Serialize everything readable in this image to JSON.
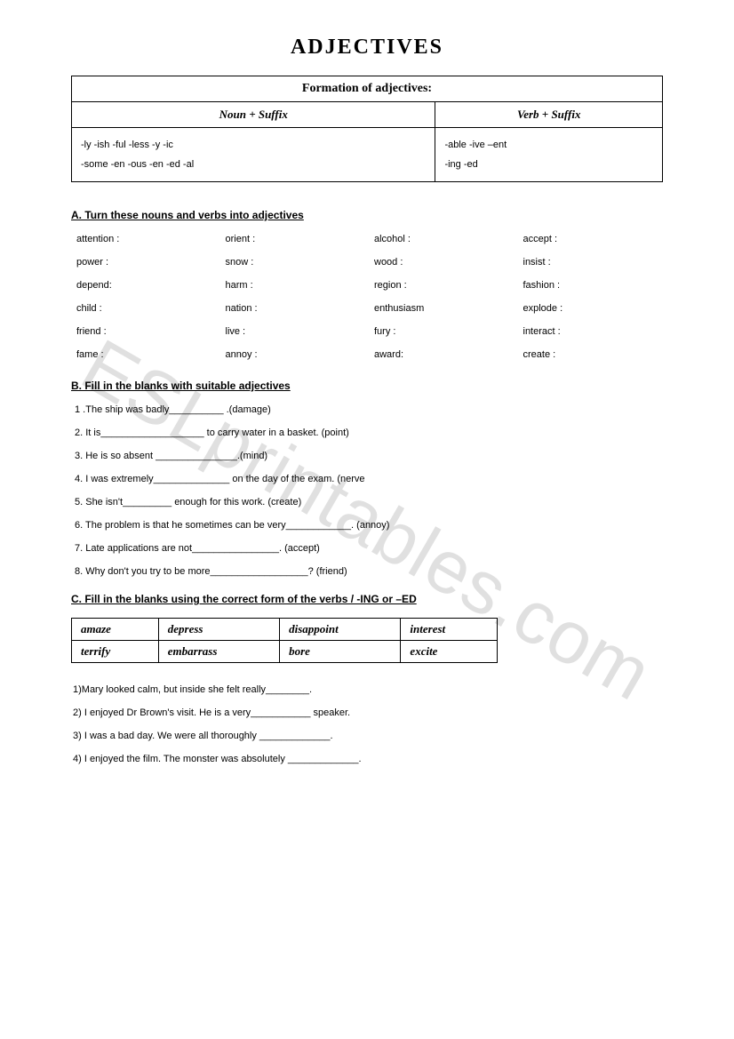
{
  "title": "ADJECTIVES",
  "watermark": "ESLprintables.com",
  "formation": {
    "header": "Formation of adjectives:",
    "col1_header": "Noun + Suffix",
    "col2_header": "Verb + Suffix",
    "col1_line1": "-ly -ish -ful -less -y -ic",
    "col1_line2": "-some -en -ous -en -ed -al",
    "col2_line1": "-able -ive –ent",
    "col2_line2": "-ing -ed"
  },
  "sectionA": {
    "heading": "A. Turn these nouns and verbs into adjectives",
    "words": [
      "attention :",
      "orient :",
      "alcohol :",
      "accept :",
      "power :",
      "snow :",
      "wood :",
      "insist :",
      "depend:",
      "harm :",
      "region :",
      "fashion :",
      "child :",
      "nation :",
      "enthusiasm",
      "explode :",
      "friend :",
      "live :",
      "fury :",
      "interact :",
      "fame :",
      "annoy :",
      "award:",
      "create :"
    ]
  },
  "sectionB": {
    "heading": "B. Fill in the blanks with suitable adjectives",
    "items": [
      "1 .The ship was badly__________ .(damage)",
      "2. It is___________________ to carry water in a basket. (point)",
      "3. He is so absent _______________.(mind)",
      "4. I was extremely______________ on the day of the exam. (nerve",
      "5. She isn't_________ enough for this work. (create)",
      "6. The problem is that he sometimes can be very____________. (annoy)",
      "7. Late applications are not________________. (accept)",
      "8. Why don't you try to be more__________________? (friend)"
    ]
  },
  "sectionC": {
    "heading": "C. Fill in the blanks using the correct form of the verbs / -ING or –ED",
    "verbs": [
      [
        "amaze",
        "depress",
        "disappoint",
        "interest"
      ],
      [
        "terrify",
        "embarrass",
        "bore",
        "excite"
      ]
    ],
    "items": [
      "1)Mary looked calm, but inside she felt really________.",
      "2) I enjoyed Dr Brown's visit. He is a very___________ speaker.",
      "3) I was a bad day. We were all thoroughly _____________.",
      "4) I enjoyed the film. The monster was absolutely _____________."
    ]
  }
}
